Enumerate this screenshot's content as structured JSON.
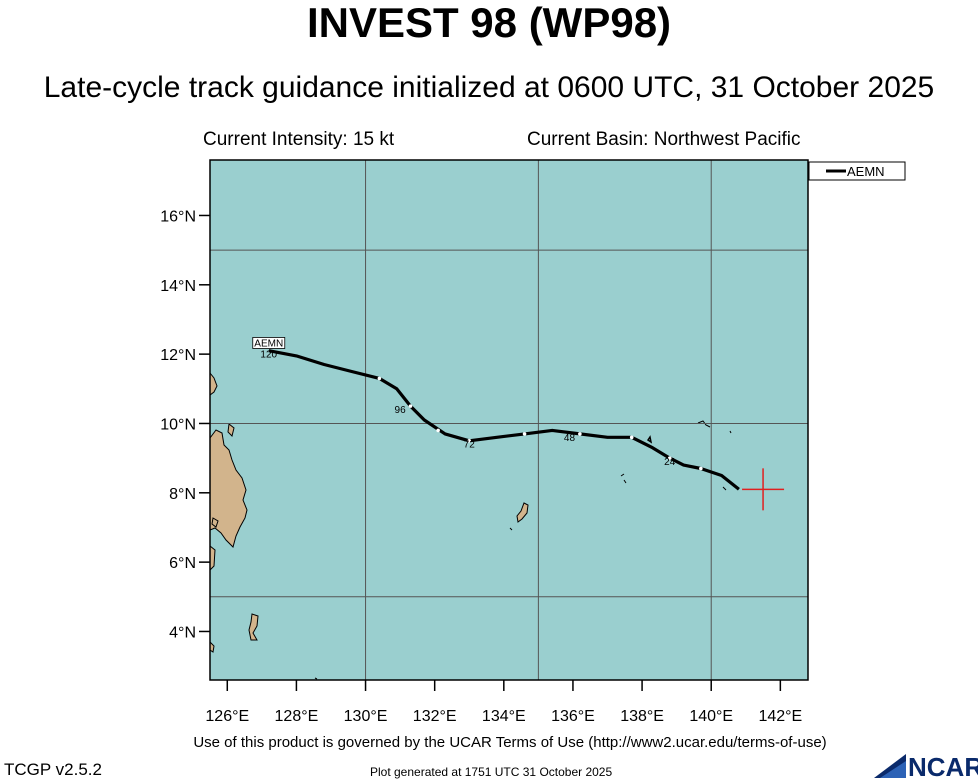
{
  "title": "INVEST 98 (WP98)",
  "subtitle": "Late-cycle track guidance initialized at 0600 UTC, 31 October 2025",
  "current_intensity": "Current Intensity: 15 kt",
  "current_basin": "Current Basin: Northwest Pacific",
  "colors": {
    "ocean": "#9acfcf",
    "land": "#d2b48c",
    "track": "#000000",
    "forecast_dot": "#ffffff",
    "current_position_marker": "#e02020",
    "grid": "#555555"
  },
  "map": {
    "projection": "lat-lon",
    "lon_range": [
      125.5,
      142.8
    ],
    "lat_range": [
      2.6,
      17.6
    ],
    "lat_ticks": [
      "4°N",
      "6°N",
      "8°N",
      "10°N",
      "12°N",
      "14°N",
      "16°N"
    ],
    "lat_tick_values": [
      4,
      6,
      8,
      10,
      12,
      14,
      16
    ],
    "lon_ticks": [
      "126°E",
      "128°E",
      "130°E",
      "132°E",
      "134°E",
      "136°E",
      "138°E",
      "140°E",
      "142°E"
    ],
    "lon_tick_values": [
      126,
      128,
      130,
      132,
      134,
      136,
      138,
      140,
      142
    ],
    "grid_lons": [
      130,
      135,
      140
    ],
    "grid_lats": [
      5,
      10,
      15
    ]
  },
  "legend": {
    "label": "AEMN",
    "position": "top-right outside plot"
  },
  "current_position": {
    "lon": 141.5,
    "lat": 8.1
  },
  "tracks": [
    {
      "name": "AEMN",
      "points": [
        {
          "lon": 140.8,
          "lat": 8.1
        },
        {
          "lon": 140.3,
          "lat": 8.5
        },
        {
          "lon": 139.7,
          "lat": 8.7
        },
        {
          "lon": 139.2,
          "lat": 8.8
        },
        {
          "lon": 138.8,
          "lat": 9.0
        },
        {
          "lon": 138.3,
          "lat": 9.3
        },
        {
          "lon": 137.7,
          "lat": 9.6
        },
        {
          "lon": 137.0,
          "lat": 9.6
        },
        {
          "lon": 136.2,
          "lat": 9.7
        },
        {
          "lon": 135.4,
          "lat": 9.8
        },
        {
          "lon": 134.6,
          "lat": 9.7
        },
        {
          "lon": 133.8,
          "lat": 9.6
        },
        {
          "lon": 133.0,
          "lat": 9.5
        },
        {
          "lon": 132.3,
          "lat": 9.7
        },
        {
          "lon": 131.7,
          "lat": 10.1
        },
        {
          "lon": 131.3,
          "lat": 10.5
        },
        {
          "lon": 130.9,
          "lat": 11.0
        },
        {
          "lon": 130.4,
          "lat": 11.3
        },
        {
          "lon": 129.6,
          "lat": 11.5
        },
        {
          "lon": 128.8,
          "lat": 11.7
        },
        {
          "lon": 128.0,
          "lat": 11.95
        },
        {
          "lon": 127.2,
          "lat": 12.1
        }
      ],
      "forecast_dots": [
        {
          "lon": 139.7,
          "lat": 8.7
        },
        {
          "lon": 138.8,
          "lat": 9.0
        },
        {
          "lon": 137.7,
          "lat": 9.6
        },
        {
          "lon": 136.2,
          "lat": 9.7
        },
        {
          "lon": 134.6,
          "lat": 9.7
        },
        {
          "lon": 133.0,
          "lat": 9.5
        },
        {
          "lon": 132.1,
          "lat": 9.8
        },
        {
          "lon": 131.3,
          "lat": 10.5
        },
        {
          "lon": 130.4,
          "lat": 11.3
        }
      ],
      "hour_labels": [
        {
          "text": "24",
          "lon": 138.8,
          "lat": 8.8
        },
        {
          "text": "48",
          "lon": 135.9,
          "lat": 9.5
        },
        {
          "text": "72",
          "lon": 133.0,
          "lat": 9.3
        },
        {
          "text": "96",
          "lon": 131.0,
          "lat": 10.3
        },
        {
          "text": "120",
          "lon": 127.2,
          "lat": 11.9
        }
      ],
      "end_label": {
        "text": "AEMN",
        "lon": 127.2,
        "lat": 12.25
      }
    }
  ],
  "footer_terms": "Use of this product is governed by the UCAR Terms of Use (http://www2.ucar.edu/terms-of-use)",
  "version": "TCGP v2.5.2",
  "generated": "Plot generated at 1751 UTC   31 October 2025",
  "logo_text": "NCAR"
}
